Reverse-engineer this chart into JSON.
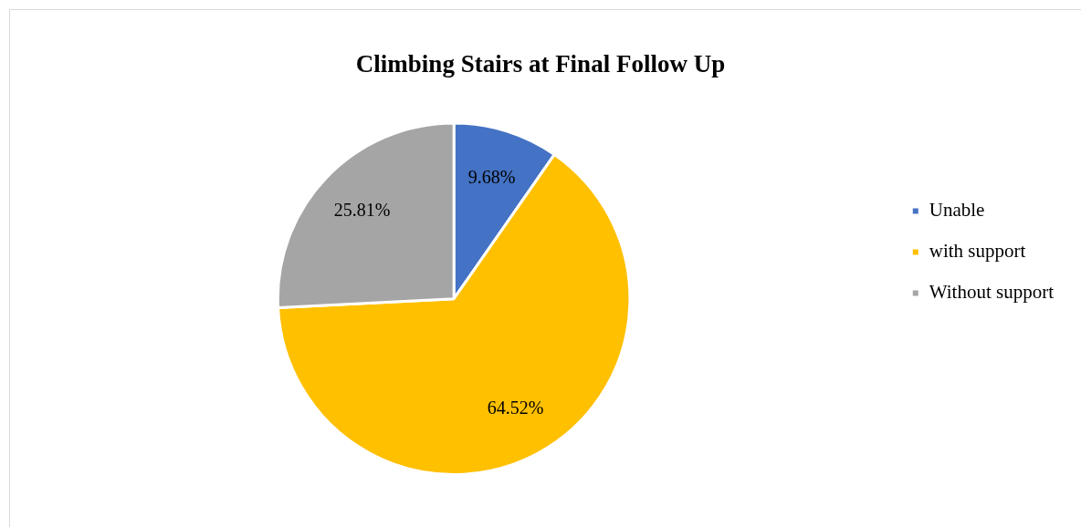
{
  "chart_data": {
    "type": "pie",
    "title": "Climbing Stairs at Final Follow Up",
    "categories": [
      "Unable",
      "with support",
      "Without support"
    ],
    "values": [
      9.68,
      64.52,
      25.81
    ],
    "colors": [
      "#4472c4",
      "#ffc000",
      "#a5a5a5"
    ],
    "value_labels": [
      "9.68%",
      "64.52%",
      "25.81%"
    ],
    "legend": "right"
  }
}
